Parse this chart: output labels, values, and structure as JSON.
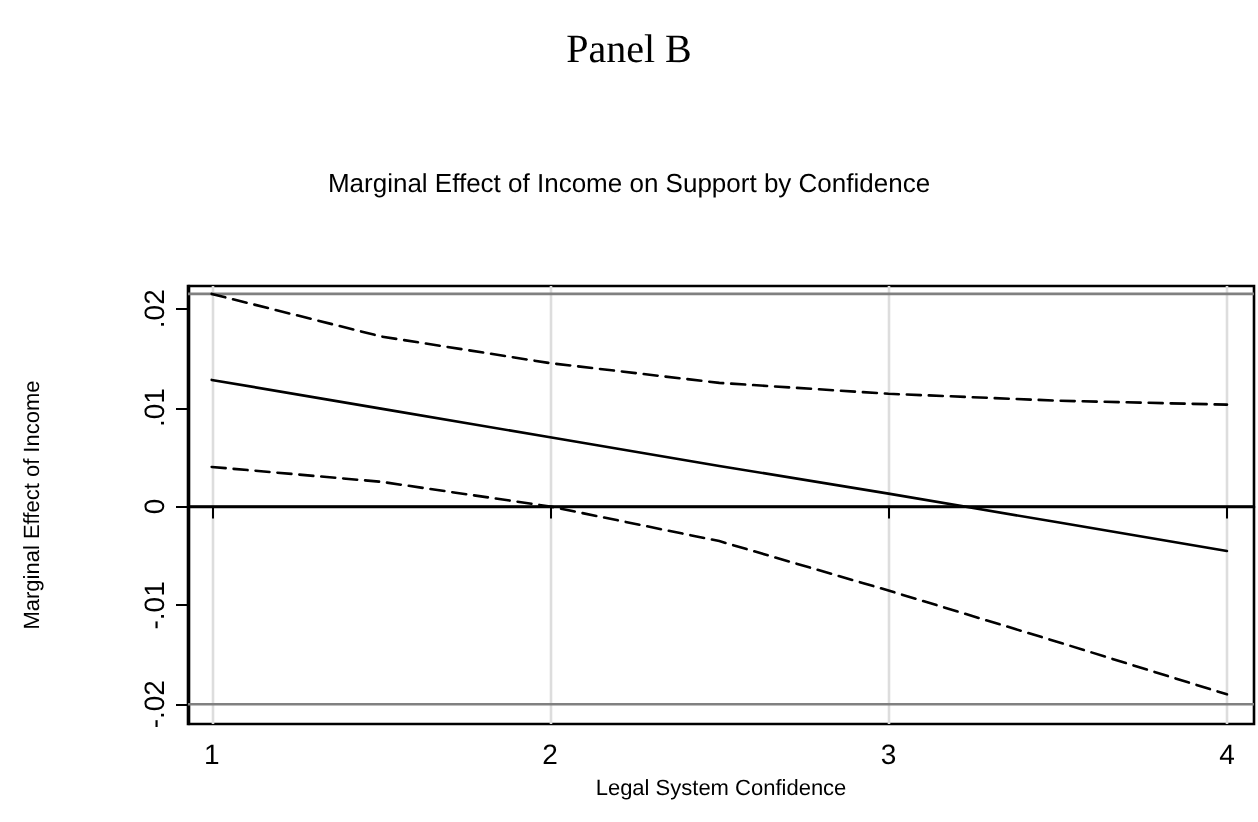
{
  "chart_data": {
    "type": "line",
    "title": "Panel B",
    "subtitle": "Marginal Effect of Income on Support by Confidence",
    "xlabel": "Legal System Confidence",
    "ylabel": "Marginal Effect of Income",
    "x": [
      1,
      1.5,
      2,
      2.5,
      3,
      3.5,
      4
    ],
    "series": [
      {
        "color": "#000000",
        "line_style": "solid",
        "values": [
          0.0128,
          0.0099,
          0.007,
          0.0041,
          0.0013,
          -0.0016,
          -0.0045
        ]
      },
      {
        "color": "#000000",
        "line_style": "dashed",
        "values": [
          0.0215,
          0.0172,
          0.0145,
          0.0125,
          0.0114,
          0.0107,
          0.0103
        ]
      },
      {
        "color": "#000000",
        "line_style": "dashed",
        "values": [
          0.004,
          0.0025,
          0.0,
          -0.0035,
          -0.0085,
          -0.0137,
          -0.019
        ]
      }
    ],
    "xlim": [
      0.93,
      4.08
    ],
    "xticks": [
      1,
      2,
      3,
      4
    ],
    "ylim": [
      -0.022,
      0.0223
    ],
    "yticks": [
      {
        "value": -0.02,
        "label": "-.02"
      },
      {
        "value": -0.01,
        "label": "-.01"
      },
      0,
      {
        "value": 0.01,
        "label": ".01"
      },
      {
        "value": 0.02,
        "label": ".02"
      }
    ],
    "ref_lines": [
      {
        "axis": "y",
        "value": 0,
        "color": "#000000"
      },
      {
        "axis": "y",
        "value": 0.0215,
        "color": "#808080"
      },
      {
        "axis": "y",
        "value": -0.02,
        "color": "#808080"
      }
    ],
    "grid": "x",
    "marker": "none"
  }
}
